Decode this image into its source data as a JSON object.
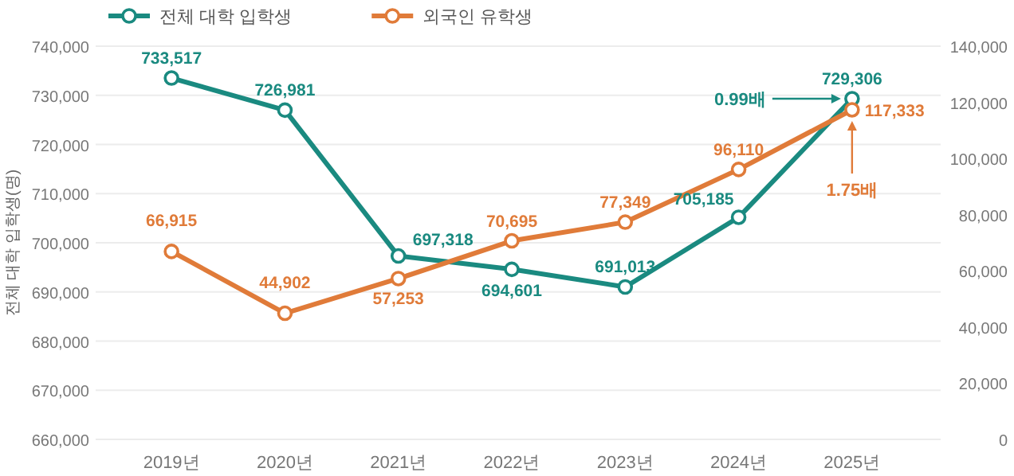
{
  "chart_data": {
    "type": "line",
    "ylabel": "전체 대학 입학생(명)",
    "categories": [
      "2019년",
      "2020년",
      "2021년",
      "2022년",
      "2023년",
      "2024년",
      "2025년"
    ],
    "series": [
      {
        "name": "전체 대학 입학생",
        "color": "#1a8a80",
        "values": [
          733517,
          726981,
          697318,
          694601,
          691013,
          705185,
          729306
        ],
        "value_labels": [
          "733,517",
          "726,981",
          "697,318",
          "694,601",
          "691,013",
          "705,185",
          "729,306"
        ]
      },
      {
        "name": "외국인 유학생",
        "color": "#e07b39",
        "axis": "y2",
        "values": [
          66915,
          44902,
          57253,
          70695,
          77349,
          96110,
          117333
        ],
        "value_labels": [
          "66,915",
          "44,902",
          "57,253",
          "70,695",
          "77,349",
          "96,110",
          "117,333"
        ]
      }
    ],
    "ylim": [
      660000,
      740000
    ],
    "yticks": [
      {
        "value": 660000,
        "label": "660,000"
      },
      {
        "value": 670000,
        "label": "670,000"
      },
      {
        "value": 680000,
        "label": "680,000"
      },
      {
        "value": 690000,
        "label": "690,000"
      },
      {
        "value": 700000,
        "label": "700,000"
      },
      {
        "value": 710000,
        "label": "710,000"
      },
      {
        "value": 720000,
        "label": "720,000"
      },
      {
        "value": 730000,
        "label": "730,000"
      },
      {
        "value": 740000,
        "label": "740,000"
      }
    ],
    "y2lim": [
      0,
      140000
    ],
    "y2ticks": [
      0,
      {
        "value": 20000,
        "label": "20,000"
      },
      {
        "value": 40000,
        "label": "40,000"
      },
      {
        "value": 60000,
        "label": "60,000"
      },
      {
        "value": 80000,
        "label": "80,000"
      },
      {
        "value": 100000,
        "label": "100,000"
      },
      {
        "value": 120000,
        "label": "120,000"
      },
      {
        "value": 140000,
        "label": "140,000"
      }
    ],
    "grid": "y",
    "legend": "top left",
    "marker": "circle",
    "line_style": "solid",
    "annotations": [
      "0.99배",
      "1.75배"
    ]
  }
}
